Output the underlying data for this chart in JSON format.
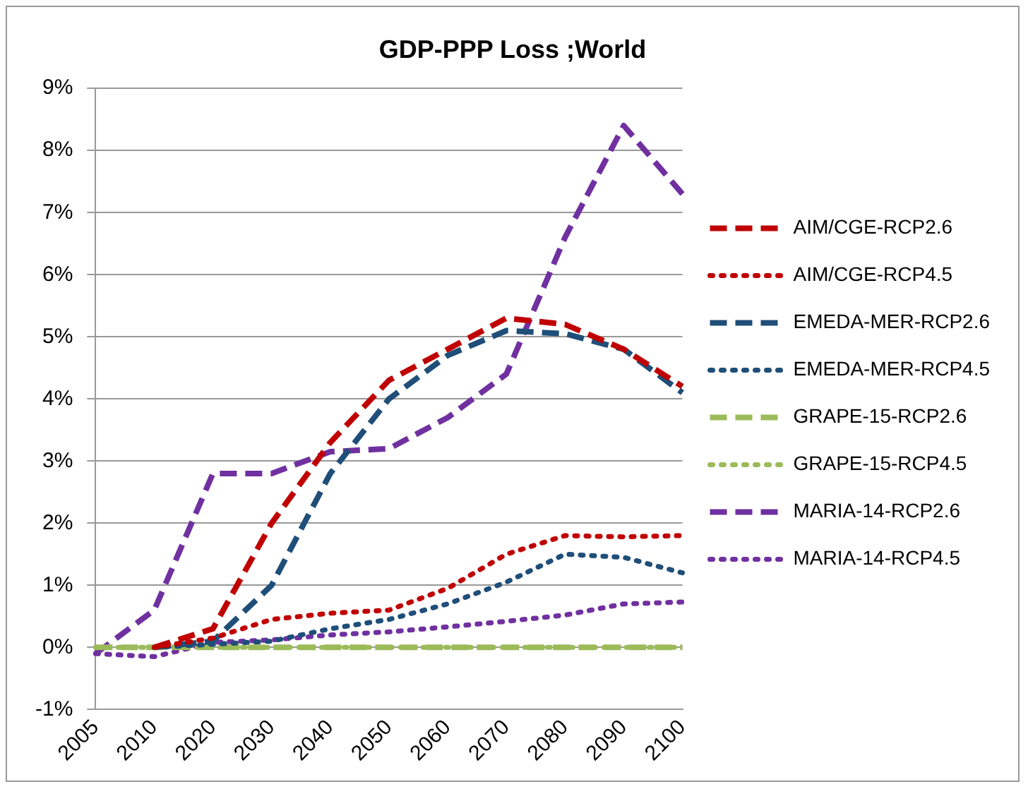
{
  "chart_data": {
    "type": "line",
    "title": "GDP-PPP Loss ;World",
    "categories": [
      "2005",
      "2010",
      "2020",
      "2030",
      "2040",
      "2050",
      "2060",
      "2070",
      "2080",
      "2090",
      "2100"
    ],
    "series": [
      {
        "name": "AIM/CGE-RCP2.6",
        "color": "#c00000",
        "line_style": "dashed",
        "values": [
          null,
          0,
          0.3,
          2.0,
          3.3,
          4.3,
          4.8,
          5.3,
          5.2,
          4.8,
          4.2
        ]
      },
      {
        "name": "AIM/CGE-RCP4.5",
        "color": "#c00000",
        "line_style": "dotted",
        "values": [
          null,
          0,
          0.15,
          0.45,
          0.55,
          0.6,
          0.95,
          1.5,
          1.8,
          1.78,
          1.8
        ]
      },
      {
        "name": "EMEDA-MER-RCP2.6",
        "color": "#1f4e79",
        "line_style": "dashed",
        "values": [
          null,
          0,
          0.1,
          1.0,
          2.8,
          4.0,
          4.7,
          5.1,
          5.05,
          4.8,
          4.1
        ]
      },
      {
        "name": "EMEDA-MER-RCP4.5",
        "color": "#1f4e79",
        "line_style": "dotted",
        "values": [
          null,
          0,
          0.05,
          0.1,
          0.3,
          0.45,
          0.7,
          1.05,
          1.5,
          1.45,
          1.2
        ]
      },
      {
        "name": "GRAPE-15-RCP2.6",
        "color": "#9bbb59",
        "line_style": "dashed",
        "values": [
          0,
          0,
          0,
          0,
          0,
          0,
          0,
          0,
          0,
          0,
          0
        ]
      },
      {
        "name": "GRAPE-15-RCP4.5",
        "color": "#9bbb59",
        "line_style": "dotted",
        "values": [
          0,
          0,
          0,
          0,
          0,
          0,
          0,
          0,
          0,
          0,
          0
        ]
      },
      {
        "name": "MARIA-14-RCP2.6",
        "color": "#7030a0",
        "line_style": "dashed",
        "values": [
          -0.1,
          0.6,
          2.8,
          2.8,
          3.15,
          3.2,
          3.7,
          4.4,
          6.6,
          8.4,
          7.3
        ]
      },
      {
        "name": "MARIA-14-RCP4.5",
        "color": "#7030a0",
        "line_style": "dotted",
        "values": [
          -0.1,
          -0.15,
          0.08,
          0.12,
          0.2,
          0.25,
          0.33,
          0.42,
          0.52,
          0.7,
          0.73
        ]
      }
    ],
    "ylim": [
      -1,
      9
    ],
    "yticks": [
      {
        "value": -1,
        "label": "-1%"
      },
      {
        "value": 0,
        "label": "0%"
      },
      {
        "value": 1,
        "label": "1%"
      },
      {
        "value": 2,
        "label": "2%"
      },
      {
        "value": 3,
        "label": "3%"
      },
      {
        "value": 4,
        "label": "4%"
      },
      {
        "value": 5,
        "label": "5%"
      },
      {
        "value": 6,
        "label": "6%"
      },
      {
        "value": 7,
        "label": "7%"
      },
      {
        "value": 8,
        "label": "8%"
      },
      {
        "value": 9,
        "label": "9%"
      }
    ],
    "grid": "y",
    "legend": "right",
    "marker": "none"
  }
}
